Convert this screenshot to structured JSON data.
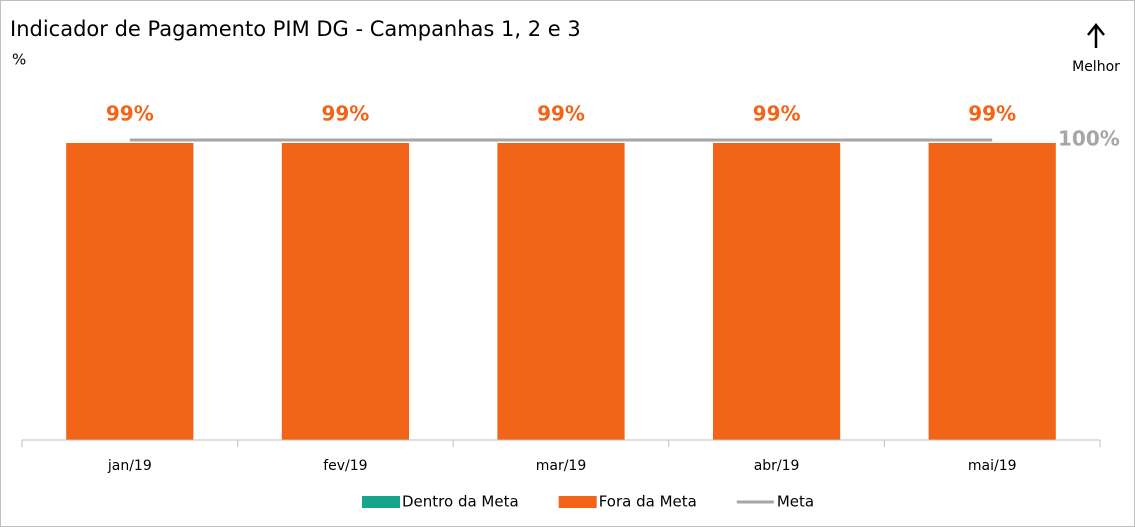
{
  "chart_data": {
    "type": "bar",
    "title": "Indicador de Pagamento PIM DG - Campanhas 1, 2 e 3",
    "y_label": "%",
    "annotation": "Melhor",
    "categories": [
      "jan/19",
      "fev/19",
      "mar/19",
      "abr/19",
      "mai/19"
    ],
    "series": [
      {
        "name": "Dentro da Meta",
        "color": "#17a58a",
        "values": [
          null,
          null,
          null,
          null,
          null
        ]
      },
      {
        "name": "Fora da Meta",
        "color": "#f26418",
        "values": [
          99,
          99,
          99,
          99,
          99
        ],
        "value_labels": [
          "99%",
          "99%",
          "99%",
          "99%",
          "99%"
        ]
      },
      {
        "name": "Meta",
        "color": "#a6a6a6",
        "type": "line",
        "values": [
          100,
          100,
          100,
          100,
          100
        ],
        "value_labels": [
          null,
          null,
          null,
          null,
          "100%"
        ]
      }
    ],
    "ylim": [
      0,
      100
    ],
    "grid": false,
    "legend": "bottom"
  }
}
